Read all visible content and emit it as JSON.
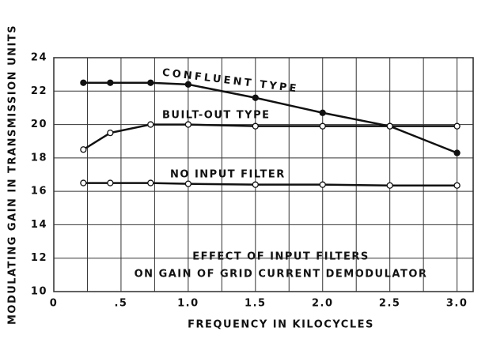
{
  "chart_data": {
    "type": "line",
    "ylabel": "MODULATING GAIN IN TRANSMISSION UNITS",
    "xlabel": "FREQUENCY IN KILOCYCLES",
    "annotations": [
      "EFFECT OF INPUT FILTERS",
      "ON GAIN OF GRID CURRENT DEMODULATOR"
    ],
    "x": [
      0.22,
      0.42,
      0.72,
      1.0,
      1.5,
      2.0,
      2.5,
      3.0
    ],
    "series": [
      {
        "name": "CONFLUENT TYPE",
        "color": "#111111",
        "marker": "filled",
        "values": [
          22.5,
          22.5,
          22.5,
          22.4,
          21.6,
          20.7,
          19.9,
          18.3
        ]
      },
      {
        "name": "BUILT-OUT TYPE",
        "color": "#111111",
        "marker": "open",
        "values": [
          18.5,
          19.5,
          20.0,
          20.0,
          19.9,
          19.9,
          19.9,
          19.9
        ]
      },
      {
        "name": "NO INPUT FILTER",
        "color": "#111111",
        "marker": "open",
        "values": [
          16.5,
          16.5,
          16.5,
          16.45,
          16.4,
          16.4,
          16.35,
          16.35
        ]
      }
    ],
    "xlim": [
      0,
      3.12
    ],
    "ylim": [
      10,
      24
    ],
    "xticks": [
      0,
      {
        "value": 0.5,
        "label": ".5"
      },
      {
        "value": 1.0,
        "label": "1.0"
      },
      {
        "value": 1.5,
        "label": "1.5"
      },
      {
        "value": 2.0,
        "label": "2.0"
      },
      {
        "value": 2.5,
        "label": "2.5"
      },
      {
        "value": 3.0,
        "label": "3.0"
      }
    ],
    "x_minor_ticks": [
      0.25,
      0.75,
      1.25,
      1.75,
      2.25,
      2.75
    ],
    "yticks": [
      10,
      12,
      14,
      16,
      18,
      20,
      22,
      24
    ],
    "grid": true
  }
}
